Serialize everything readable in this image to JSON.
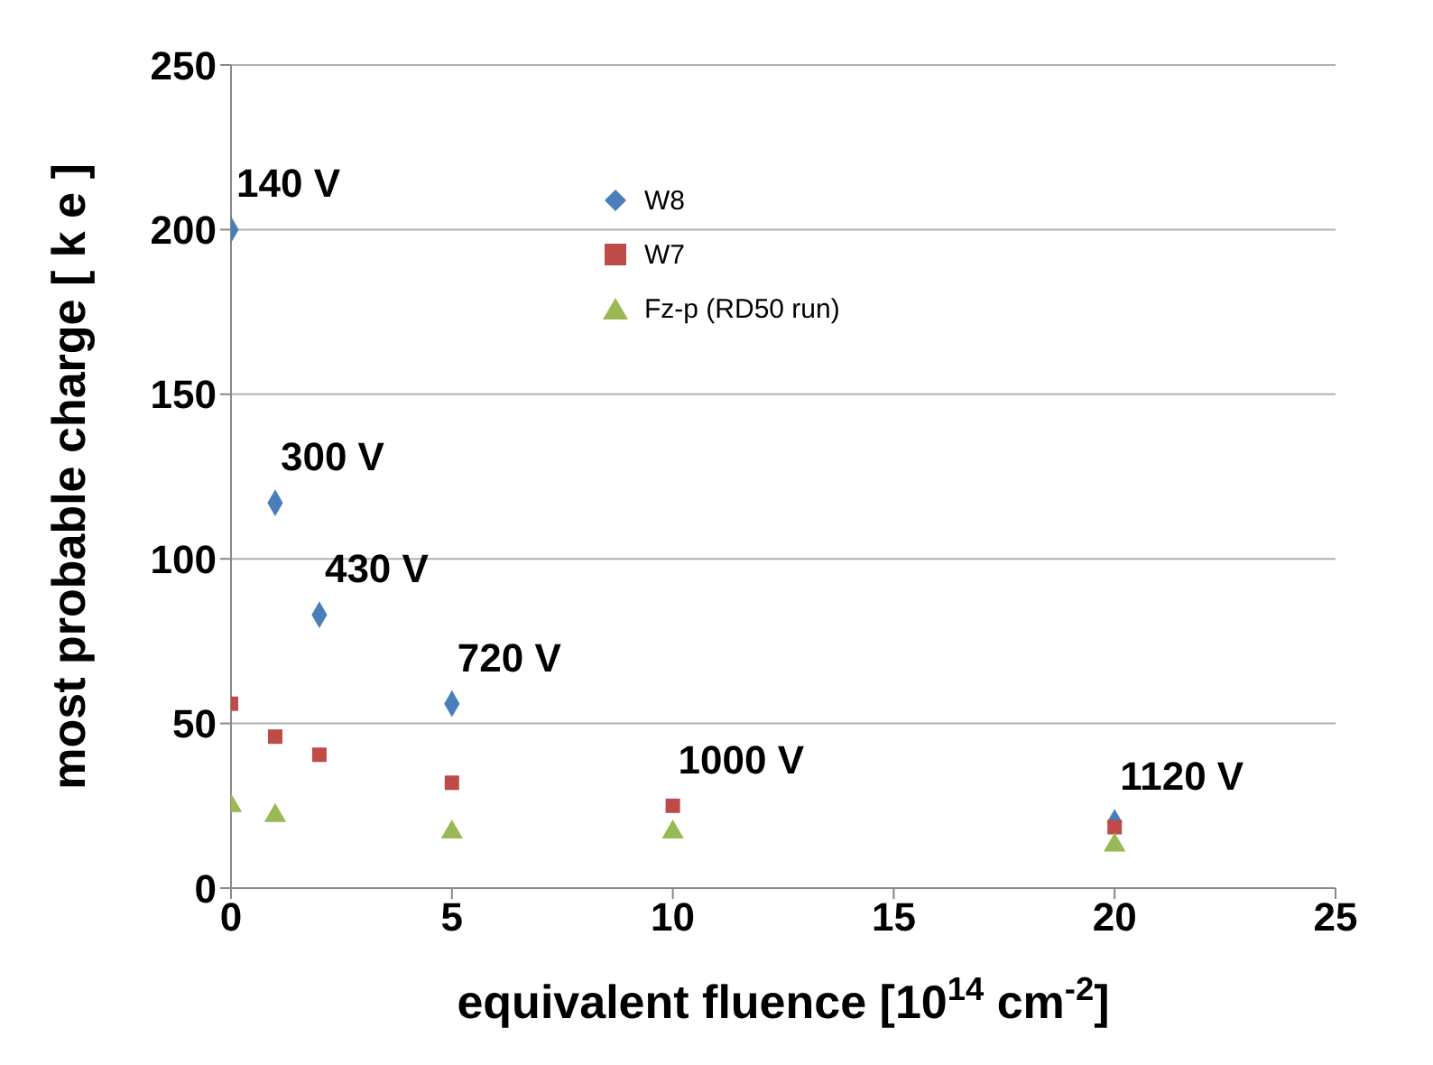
{
  "chart_data": {
    "type": "scatter",
    "xlabel": "equivalent fluence [10$^{14}$ cm$^{-2}$]",
    "ylabel": "most probable charge  [ k e ]",
    "xlim": [
      0,
      25
    ],
    "xticks": [
      0,
      5,
      10,
      15,
      20,
      25
    ],
    "ylim": [
      0,
      250
    ],
    "yticks": [
      0,
      50,
      100,
      150,
      200,
      250
    ],
    "grid": "y",
    "legend": "top",
    "series": [
      {
        "name": "W8",
        "color": "#4a7ebb",
        "marker": "diamond",
        "x": [
          0,
          1,
          2,
          5,
          20
        ],
        "values": [
          200,
          117,
          83,
          56,
          20
        ]
      },
      {
        "name": "W7",
        "color": "#be4b48",
        "marker": "square",
        "x": [
          0,
          1,
          2,
          5,
          10,
          20
        ],
        "values": [
          56,
          46,
          40.5,
          32,
          25,
          18.5
        ]
      },
      {
        "name": "Fz-p (RD50 run)",
        "color": "#98b954",
        "marker": "triangle",
        "x": [
          0,
          1,
          5,
          10,
          20
        ],
        "values": [
          25,
          22,
          17,
          17,
          13
        ]
      }
    ],
    "annotations": [
      {
        "text": "140 V",
        "x": 0,
        "y": 200
      },
      {
        "text": "300 V",
        "x": 1,
        "y": 117
      },
      {
        "text": "430 V",
        "x": 2,
        "y": 83
      },
      {
        "text": "720 V",
        "x": 5,
        "y": 56
      },
      {
        "text": "1000 V",
        "x": 10,
        "y": 25
      },
      {
        "text": "1120 V",
        "x": 20,
        "y": 20
      }
    ]
  }
}
